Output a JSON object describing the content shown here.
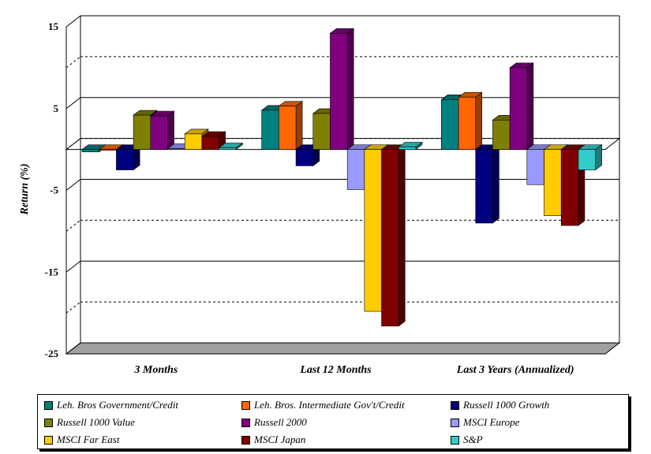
{
  "chart_data": {
    "type": "bar",
    "title": "",
    "xlabel": "",
    "ylabel": "Return (%)",
    "ylim": [
      -25,
      15
    ],
    "yticks": [
      15,
      5,
      -5,
      -15,
      -25
    ],
    "categories": [
      "3 Months",
      "Last 12 Months",
      "Last 3 Years (Annualized)"
    ],
    "grid": true,
    "legend": "bottom",
    "series": [
      {
        "name": "Leh. Bros Government/Credit",
        "color": "#008080",
        "values": [
          -0.3,
          4.8,
          6.1
        ]
      },
      {
        "name": "Leh. Bros. Intermediate Gov't/Credit",
        "color": "#FF6600",
        "values": [
          -0.1,
          5.3,
          6.4
        ]
      },
      {
        "name": "Russell 1000 Growth",
        "color": "#000080",
        "values": [
          -2.5,
          -2.0,
          -9.0
        ]
      },
      {
        "name": "Russell 1000 Value",
        "color": "#808000",
        "values": [
          4.2,
          4.4,
          3.6
        ]
      },
      {
        "name": "Russell 2000",
        "color": "#800080",
        "values": [
          4.1,
          14.2,
          10.0
        ]
      },
      {
        "name": "MSCI Europe",
        "color": "#9999FF",
        "values": [
          0.1,
          -4.9,
          -4.3
        ]
      },
      {
        "name": "MSCI Far East",
        "color": "#FFCC00",
        "values": [
          1.9,
          -19.8,
          -8.1
        ]
      },
      {
        "name": "MSCI Japan",
        "color": "#800000",
        "values": [
          1.6,
          -21.6,
          -9.3
        ]
      },
      {
        "name": "S&P",
        "color": "#33CCCC",
        "values": [
          0.2,
          0.3,
          -2.5
        ]
      }
    ]
  }
}
